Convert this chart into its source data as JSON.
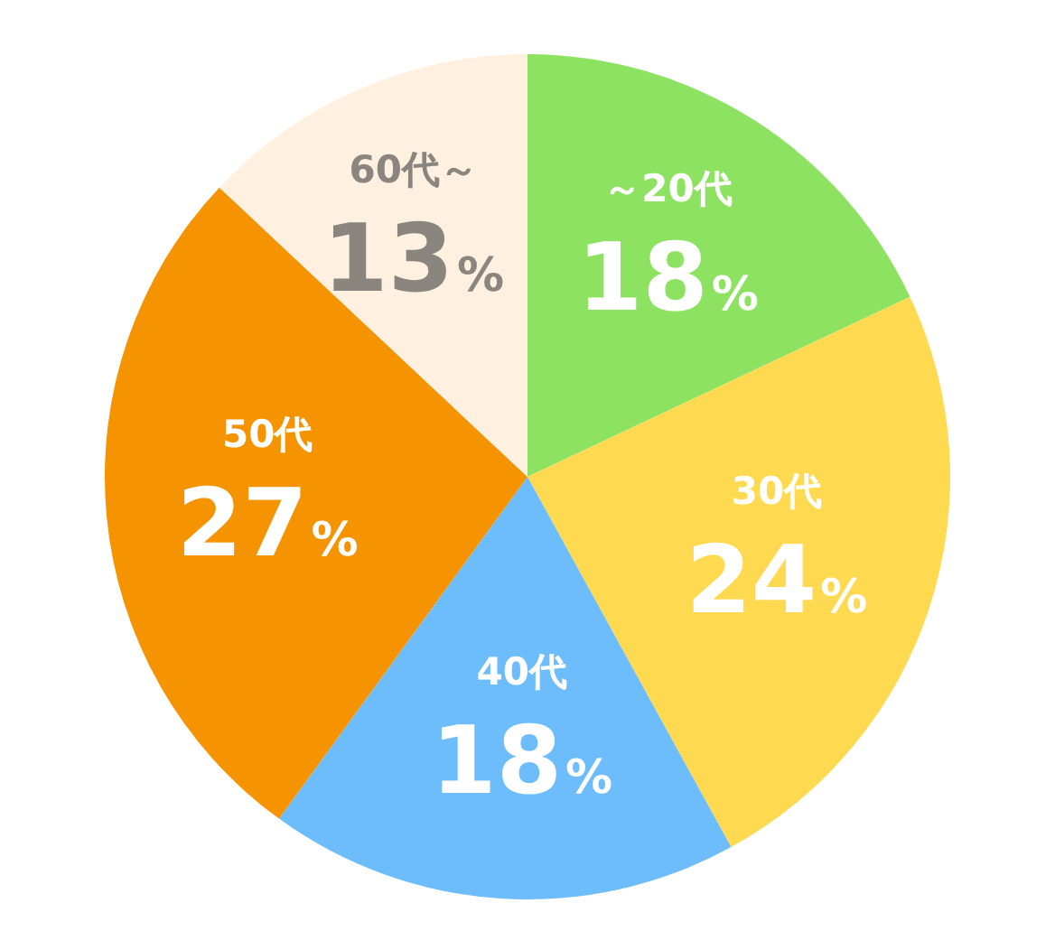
{
  "chart_data": {
    "type": "pie",
    "categories": [
      "～20代",
      "30代",
      "40代",
      "50代",
      "60代～"
    ],
    "values": [
      18,
      24,
      18,
      27,
      13
    ],
    "colors": [
      "#8de262",
      "#ffd94f",
      "#6dbdfd",
      "#f59400",
      "#fff0df"
    ],
    "value_labels": [
      "18%",
      "24%",
      "18%",
      "27%",
      "13%"
    ]
  }
}
